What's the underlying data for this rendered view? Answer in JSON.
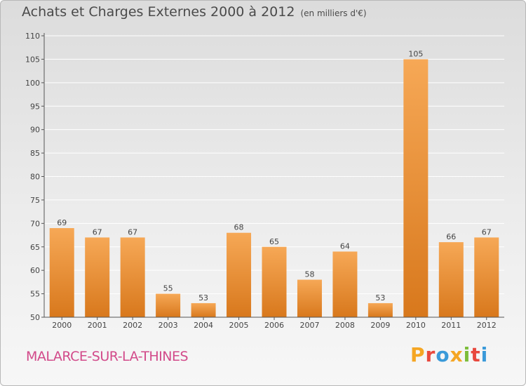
{
  "header": {
    "title": "Achats et Charges Externes 2000 à 2012",
    "unit": "(en milliers d'€)"
  },
  "footer": {
    "commune": "MALARCE-SUR-LA-THINES",
    "brand": "Proxiti",
    "brand_colors": [
      "#f5a623",
      "#e8483d",
      "#3a9ad9",
      "#f5a623",
      "#7cbd3a",
      "#e8483d",
      "#3a9ad9"
    ]
  },
  "colors": {
    "bar_top": "#f6a856",
    "bar_bottom": "#d8781c",
    "axis": "#555555",
    "grid": "#ffffff",
    "text": "#444444"
  },
  "chart_data": {
    "type": "bar",
    "title": "Achats et Charges Externes 2000 à 2012",
    "xlabel": "",
    "ylabel": "",
    "categories": [
      "2000",
      "2001",
      "2002",
      "2003",
      "2004",
      "2005",
      "2006",
      "2007",
      "2008",
      "2009",
      "2010",
      "2011",
      "2012"
    ],
    "values": [
      69,
      67,
      67,
      55,
      53,
      68,
      65,
      58,
      64,
      53,
      105,
      66,
      67
    ],
    "ylim": [
      50,
      110
    ],
    "yticks": [
      50,
      55,
      60,
      65,
      70,
      75,
      80,
      85,
      90,
      95,
      100,
      105,
      110
    ],
    "grid": true,
    "legend": "none"
  }
}
